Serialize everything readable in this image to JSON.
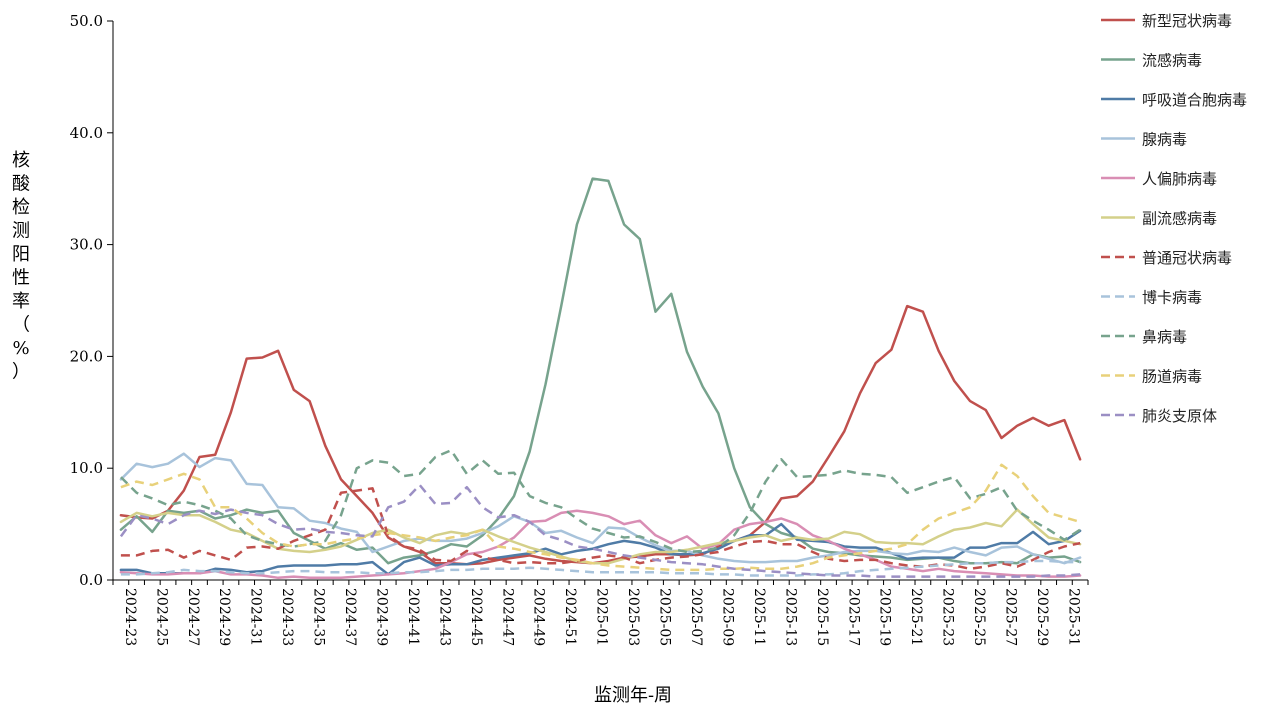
{
  "chart_data": {
    "type": "line",
    "title": "",
    "xlabel": "监测年-周",
    "ylabel": "核酸检测阳性率（%）",
    "ylim": [
      0,
      50
    ],
    "yticks": [
      "0.0",
      "10.0",
      "20.0",
      "30.0",
      "40.0",
      "50.0"
    ],
    "grid": false,
    "legend_position": "right",
    "x_tick_labels": [
      "2024-23",
      "2024-25",
      "2024-27",
      "2024-29",
      "2024-31",
      "2024-33",
      "2024-35",
      "2024-37",
      "2024-39",
      "2024-41",
      "2024-43",
      "2024-45",
      "2024-47",
      "2024-49",
      "2024-51",
      "2025-01",
      "2025-03",
      "2025-05",
      "2025-07",
      "2025-09",
      "2025-11",
      "2025-13",
      "2025-15",
      "2025-17",
      "2025-19",
      "2025-21",
      "2025-23",
      "2025-25",
      "2025-27",
      "2025-29",
      "2025-31"
    ],
    "x": [
      "2024-23",
      "2024-24",
      "2024-25",
      "2024-26",
      "2024-27",
      "2024-28",
      "2024-29",
      "2024-30",
      "2024-31",
      "2024-32",
      "2024-33",
      "2024-34",
      "2024-35",
      "2024-36",
      "2024-37",
      "2024-38",
      "2024-39",
      "2024-40",
      "2024-41",
      "2024-42",
      "2024-43",
      "2024-44",
      "2024-45",
      "2024-46",
      "2024-47",
      "2024-48",
      "2024-49",
      "2024-50",
      "2024-51",
      "2024-52",
      "2025-01",
      "2025-02",
      "2025-03",
      "2025-04",
      "2025-05",
      "2025-06",
      "2025-07",
      "2025-08",
      "2025-09",
      "2025-10",
      "2025-11",
      "2025-12",
      "2025-13",
      "2025-14",
      "2025-15",
      "2025-16",
      "2025-17",
      "2025-18",
      "2025-19",
      "2025-20",
      "2025-21",
      "2025-22",
      "2025-23",
      "2025-24",
      "2025-25",
      "2025-26",
      "2025-27",
      "2025-28",
      "2025-29",
      "2025-30",
      "2025-31",
      "2025-32"
    ],
    "series": [
      {
        "name": "新型冠状病毒",
        "color": "#C0504D",
        "dash": false,
        "values": [
          5.8,
          5.6,
          5.5,
          6.2,
          8.0,
          11.0,
          11.2,
          15.0,
          19.8,
          19.9,
          20.5,
          17.0,
          16.0,
          12.0,
          9.0,
          7.5,
          6.0,
          3.8,
          3.0,
          2.5,
          1.5,
          1.5,
          1.4,
          1.5,
          1.8,
          2.0,
          2.2,
          1.9,
          1.7,
          1.6,
          1.5,
          1.7,
          2.0,
          2.1,
          2.3,
          2.3,
          2.2,
          2.3,
          3.0,
          3.5,
          4.0,
          5.2,
          7.3,
          7.5,
          8.8,
          11.0,
          13.3,
          16.7,
          19.4,
          20.6,
          24.5,
          24.0,
          20.5,
          17.8,
          16.0,
          15.2,
          12.7,
          13.8,
          14.5,
          13.8,
          14.3,
          10.8
        ]
      },
      {
        "name": "流感病毒",
        "color": "#77A38D",
        "dash": false,
        "values": [
          4.5,
          5.7,
          4.3,
          6.2,
          6.0,
          6.2,
          5.5,
          5.8,
          6.3,
          6.0,
          6.2,
          4.2,
          3.5,
          2.8,
          3.3,
          2.7,
          2.9,
          1.5,
          2.0,
          2.2,
          2.6,
          3.2,
          3.0,
          4.0,
          5.5,
          7.5,
          11.5,
          17.5,
          24.5,
          31.8,
          35.9,
          35.7,
          31.8,
          30.5,
          24.0,
          25.6,
          20.4,
          17.3,
          14.9,
          10.0,
          6.5,
          5.0,
          4.2,
          3.8,
          2.8,
          2.5,
          2.4,
          2.2,
          2.1,
          2.0,
          1.8,
          1.9,
          2.0,
          1.7,
          1.5,
          1.5,
          1.6,
          1.5,
          2.3,
          2.0,
          2.1,
          1.6
        ]
      },
      {
        "name": "呼吸道合胞病毒",
        "color": "#4F7BA6",
        "dash": false,
        "values": [
          0.9,
          0.9,
          0.6,
          0.6,
          0.6,
          0.6,
          1.0,
          0.9,
          0.7,
          0.8,
          1.2,
          1.3,
          1.3,
          1.3,
          1.4,
          1.4,
          1.6,
          0.5,
          1.6,
          2.0,
          1.3,
          1.4,
          1.4,
          1.8,
          2.0,
          2.2,
          2.4,
          2.8,
          2.3,
          2.6,
          2.8,
          3.2,
          3.5,
          3.3,
          2.9,
          2.3,
          2.3,
          2.4,
          2.8,
          3.5,
          4.0,
          4.0,
          5.0,
          3.6,
          3.5,
          3.4,
          3.0,
          2.9,
          2.9,
          2.4,
          1.9,
          2.0,
          2.0,
          2.0,
          2.9,
          2.9,
          3.3,
          3.3,
          4.3,
          3.2,
          3.5,
          4.4
        ]
      },
      {
        "name": "腺病毒",
        "color": "#A8C3DB",
        "dash": false,
        "values": [
          9.0,
          10.4,
          10.1,
          10.4,
          11.3,
          10.1,
          10.9,
          10.7,
          8.6,
          8.5,
          6.5,
          6.4,
          5.3,
          5.1,
          4.6,
          4.3,
          2.5,
          3.0,
          3.5,
          3.7,
          3.5,
          3.5,
          3.7,
          4.2,
          4.8,
          5.7,
          5.2,
          4.2,
          4.4,
          3.8,
          3.3,
          4.7,
          4.6,
          3.8,
          3.1,
          2.6,
          2.6,
          2.2,
          1.9,
          1.7,
          1.6,
          1.6,
          1.7,
          1.7,
          2.0,
          2.2,
          2.5,
          2.6,
          2.6,
          2.4,
          2.3,
          2.6,
          2.5,
          2.9,
          2.5,
          2.2,
          2.9,
          3.0,
          2.3,
          1.9,
          1.5,
          2.0
        ]
      },
      {
        "name": "人偏肺病毒",
        "color": "#D98EB4",
        "dash": false,
        "values": [
          0.7,
          0.6,
          0.5,
          0.5,
          0.6,
          0.6,
          0.8,
          0.5,
          0.5,
          0.4,
          0.2,
          0.3,
          0.2,
          0.2,
          0.2,
          0.3,
          0.4,
          0.5,
          0.6,
          0.8,
          1.0,
          1.6,
          2.3,
          2.5,
          3.0,
          3.8,
          5.2,
          5.3,
          6.0,
          6.2,
          6.0,
          5.7,
          5.0,
          5.3,
          4.0,
          3.3,
          3.9,
          2.8,
          3.2,
          4.5,
          5.0,
          5.2,
          5.5,
          5.0,
          4.0,
          3.5,
          2.8,
          2.3,
          1.8,
          1.2,
          1.0,
          0.8,
          1.0,
          0.8,
          0.7,
          0.6,
          0.5,
          0.4,
          0.4,
          0.3,
          0.3,
          0.4
        ]
      },
      {
        "name": "副流感病毒",
        "color": "#D4D08A",
        "dash": false,
        "values": [
          5.2,
          6.0,
          5.7,
          6.0,
          5.8,
          5.8,
          5.2,
          4.5,
          4.2,
          3.5,
          2.8,
          2.6,
          2.5,
          2.7,
          3.0,
          3.6,
          4.2,
          4.5,
          3.8,
          3.3,
          4.0,
          4.3,
          4.1,
          4.5,
          3.9,
          3.4,
          2.9,
          2.5,
          2.1,
          1.7,
          1.5,
          1.5,
          1.9,
          2.3,
          2.5,
          2.5,
          2.7,
          3.0,
          3.3,
          3.5,
          3.8,
          4.0,
          3.5,
          3.8,
          3.6,
          3.7,
          4.3,
          4.1,
          3.4,
          3.3,
          3.3,
          3.2,
          3.9,
          4.5,
          4.7,
          5.1,
          4.8,
          6.3,
          5.0,
          3.8,
          3.5,
          3.2
        ]
      },
      {
        "name": "普通冠状病毒",
        "color": "#C0504D",
        "dash": true,
        "values": [
          2.2,
          2.2,
          2.6,
          2.7,
          2.0,
          2.6,
          2.2,
          1.8,
          2.9,
          3.0,
          2.8,
          3.5,
          4.0,
          4.5,
          7.8,
          8.0,
          8.2,
          4.0,
          3.0,
          2.7,
          1.8,
          1.7,
          2.6,
          2.0,
          1.8,
          1.5,
          1.6,
          1.5,
          1.5,
          1.7,
          2.0,
          2.2,
          2.0,
          1.5,
          1.8,
          2.0,
          2.1,
          2.3,
          2.5,
          3.0,
          3.4,
          3.5,
          3.2,
          3.2,
          2.5,
          1.9,
          1.7,
          1.8,
          1.8,
          1.5,
          1.3,
          1.2,
          1.4,
          1.3,
          1.0,
          1.2,
          1.5,
          1.2,
          1.8,
          2.5,
          3.0,
          3.3
        ]
      },
      {
        "name": "博卡病毒",
        "color": "#A8C3DB",
        "dash": true,
        "values": [
          0.5,
          0.5,
          0.6,
          0.7,
          0.9,
          0.8,
          0.8,
          0.7,
          0.6,
          0.6,
          0.7,
          0.8,
          0.8,
          0.7,
          0.7,
          0.7,
          0.6,
          0.6,
          0.7,
          0.7,
          0.8,
          0.9,
          0.9,
          1.0,
          1.0,
          1.0,
          1.1,
          1.0,
          0.9,
          0.8,
          0.7,
          0.7,
          0.7,
          0.7,
          0.7,
          0.6,
          0.6,
          0.6,
          0.5,
          0.5,
          0.4,
          0.4,
          0.4,
          0.4,
          0.5,
          0.5,
          0.6,
          0.8,
          0.9,
          1.0,
          1.1,
          1.2,
          1.3,
          1.4,
          1.5,
          1.5,
          1.6,
          1.6,
          1.7,
          1.7,
          1.6,
          1.6
        ]
      },
      {
        "name": "鼻病毒",
        "color": "#77A38D",
        "dash": true,
        "values": [
          9.2,
          7.8,
          7.3,
          6.7,
          7.0,
          6.7,
          6.2,
          5.5,
          4.0,
          3.5,
          3.2,
          3.0,
          3.2,
          3.5,
          5.8,
          10.0,
          10.7,
          10.5,
          9.3,
          9.5,
          11.0,
          11.6,
          9.5,
          10.7,
          9.5,
          9.6,
          7.5,
          6.9,
          6.5,
          5.5,
          4.6,
          4.2,
          3.8,
          3.9,
          3.4,
          2.8,
          2.5,
          2.6,
          2.9,
          4.0,
          6.0,
          8.8,
          10.8,
          9.2,
          9.3,
          9.4,
          9.8,
          9.5,
          9.4,
          9.2,
          7.8,
          8.3,
          8.8,
          9.2,
          7.3,
          7.7,
          8.3,
          6.2,
          5.3,
          4.5,
          3.6,
          4.5
        ]
      },
      {
        "name": "肠道病毒",
        "color": "#E8D17A",
        "dash": true,
        "values": [
          8.3,
          8.8,
          8.5,
          9.0,
          9.5,
          9.0,
          6.5,
          6.5,
          5.5,
          4.2,
          3.3,
          3.0,
          3.2,
          3.2,
          3.5,
          3.7,
          4.0,
          4.2,
          4.0,
          3.8,
          3.5,
          3.8,
          4.0,
          4.5,
          3.0,
          2.8,
          2.5,
          2.3,
          2.0,
          1.8,
          1.5,
          1.3,
          1.2,
          1.1,
          1.0,
          0.9,
          0.9,
          0.9,
          1.0,
          1.0,
          1.1,
          1.0,
          1.0,
          1.2,
          1.5,
          2.0,
          2.2,
          2.4,
          2.6,
          2.8,
          3.2,
          4.5,
          5.5,
          6.0,
          6.5,
          8.0,
          10.3,
          9.3,
          7.5,
          6.0,
          5.6,
          5.2
        ]
      },
      {
        "name": "肺炎支原体",
        "color": "#9B8FC4",
        "dash": true,
        "values": [
          3.9,
          5.8,
          5.5,
          5.0,
          5.8,
          6.2,
          5.9,
          6.3,
          6.0,
          5.8,
          5.0,
          4.5,
          4.6,
          4.3,
          4.2,
          4.0,
          3.9,
          6.5,
          7.0,
          8.5,
          6.8,
          6.9,
          8.3,
          6.5,
          5.6,
          5.8,
          5.2,
          4.0,
          3.6,
          3.0,
          2.8,
          2.5,
          2.2,
          2.0,
          1.8,
          1.6,
          1.5,
          1.4,
          1.2,
          1.0,
          0.9,
          0.8,
          0.7,
          0.6,
          0.5,
          0.4,
          0.4,
          0.4,
          0.3,
          0.3,
          0.3,
          0.3,
          0.3,
          0.3,
          0.3,
          0.3,
          0.3,
          0.3,
          0.3,
          0.4,
          0.4,
          0.5
        ]
      }
    ]
  }
}
